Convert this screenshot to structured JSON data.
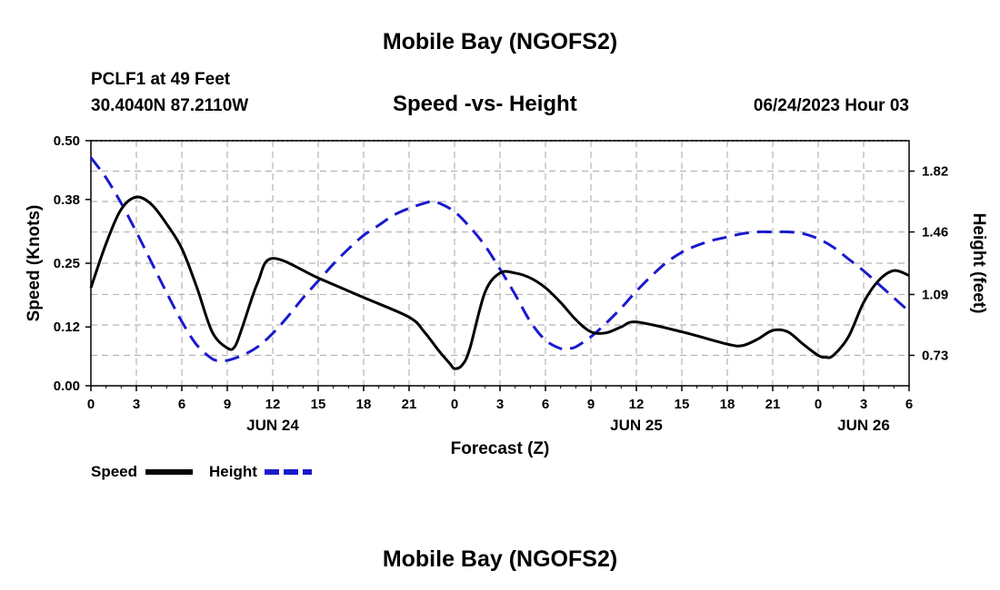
{
  "header": {
    "title": "Mobile Bay (NGOFS2)",
    "station": "PCLF1 at 49 Feet",
    "coords": "30.4040N  87.2110W",
    "subtitle": "Speed -vs- Height",
    "timestamp": "06/24/2023 Hour 03"
  },
  "footer": {
    "title": "Mobile Bay (NGOFS2)"
  },
  "colors": {
    "speed": "#000000",
    "height": "#1a1acc",
    "grid": "#b4b4b4"
  },
  "chart_data": {
    "type": "line",
    "title": "Speed -vs- Height",
    "xlabel": "Forecast (Z)",
    "ylabel": "Speed (Knots)",
    "y2label": "Height (feet)",
    "xlim": [
      0,
      54
    ],
    "ylim": [
      0,
      0.5
    ],
    "y2lim": [
      0.55,
      2.0
    ],
    "x_ticks": [
      0,
      3,
      6,
      9,
      12,
      15,
      18,
      21,
      24,
      27,
      30,
      33,
      36,
      39,
      42,
      45,
      48,
      51,
      54
    ],
    "x_tick_labels": [
      "0",
      "3",
      "6",
      "9",
      "12",
      "15",
      "18",
      "21",
      "0",
      "3",
      "6",
      "9",
      "12",
      "15",
      "18",
      "21",
      "0",
      "3",
      "6"
    ],
    "date_labels": [
      {
        "label": "JUN 24",
        "x": 12
      },
      {
        "label": "JUN 25",
        "x": 36
      },
      {
        "label": "JUN 26",
        "x": 51
      }
    ],
    "y_ticks": [
      0.0,
      0.12,
      0.25,
      0.38,
      0.5
    ],
    "y_tick_labels": [
      "0.00",
      "0.12",
      "0.25",
      "0.38",
      "0.50"
    ],
    "y2_ticks": [
      0.73,
      1.09,
      1.46,
      1.82
    ],
    "y2_tick_labels": [
      "0.73",
      "1.09",
      "1.46",
      "1.82"
    ],
    "grid": true,
    "legend": {
      "placement": "bottom-left",
      "entries": [
        "Speed",
        "Height"
      ]
    },
    "series": [
      {
        "name": "Speed",
        "axis": "left",
        "style": "solid",
        "x": [
          0,
          1,
          2,
          3,
          4,
          5,
          6,
          7,
          8,
          9,
          9.5,
          10,
          11,
          12,
          15,
          18,
          21,
          22,
          23,
          23.7,
          24,
          24.5,
          25,
          26,
          27,
          28,
          29,
          30,
          31,
          32,
          33,
          34,
          35,
          36,
          39,
          42,
          43,
          44,
          45,
          46,
          47,
          48,
          48.5,
          49,
          50,
          51,
          52,
          53,
          54
        ],
        "values": [
          0.2,
          0.29,
          0.36,
          0.385,
          0.37,
          0.33,
          0.28,
          0.2,
          0.11,
          0.077,
          0.08,
          0.12,
          0.21,
          0.26,
          0.22,
          0.18,
          0.14,
          0.11,
          0.07,
          0.045,
          0.035,
          0.042,
          0.075,
          0.19,
          0.23,
          0.23,
          0.22,
          0.2,
          0.17,
          0.135,
          0.11,
          0.108,
          0.12,
          0.13,
          0.11,
          0.085,
          0.082,
          0.095,
          0.113,
          0.11,
          0.085,
          0.062,
          0.058,
          0.062,
          0.1,
          0.17,
          0.215,
          0.235,
          0.225
        ]
      },
      {
        "name": "Height",
        "axis": "right",
        "style": "dashed",
        "x": [
          0,
          1,
          2,
          3,
          4,
          5,
          6,
          7,
          8,
          8.5,
          9,
          10,
          11,
          12,
          13,
          14,
          15,
          16,
          17,
          18,
          19,
          20,
          21,
          22,
          22.5,
          23,
          24,
          25,
          26,
          27,
          28,
          29,
          30,
          31,
          31.5,
          32,
          33,
          34,
          35,
          36,
          37,
          38,
          39,
          40,
          41,
          42,
          43,
          44,
          45,
          46,
          47,
          48,
          49,
          50,
          51,
          52,
          53,
          54
        ],
        "values": [
          1.9,
          1.78,
          1.63,
          1.46,
          1.28,
          1.1,
          0.93,
          0.79,
          0.71,
          0.7,
          0.7,
          0.73,
          0.78,
          0.86,
          0.96,
          1.07,
          1.17,
          1.27,
          1.36,
          1.44,
          1.5,
          1.56,
          1.6,
          1.63,
          1.64,
          1.63,
          1.58,
          1.49,
          1.38,
          1.24,
          1.09,
          0.93,
          0.82,
          0.77,
          0.77,
          0.78,
          0.84,
          0.92,
          1.01,
          1.11,
          1.2,
          1.28,
          1.34,
          1.38,
          1.41,
          1.43,
          1.45,
          1.46,
          1.46,
          1.46,
          1.45,
          1.42,
          1.37,
          1.3,
          1.23,
          1.15,
          1.07,
          0.99
        ]
      }
    ]
  }
}
